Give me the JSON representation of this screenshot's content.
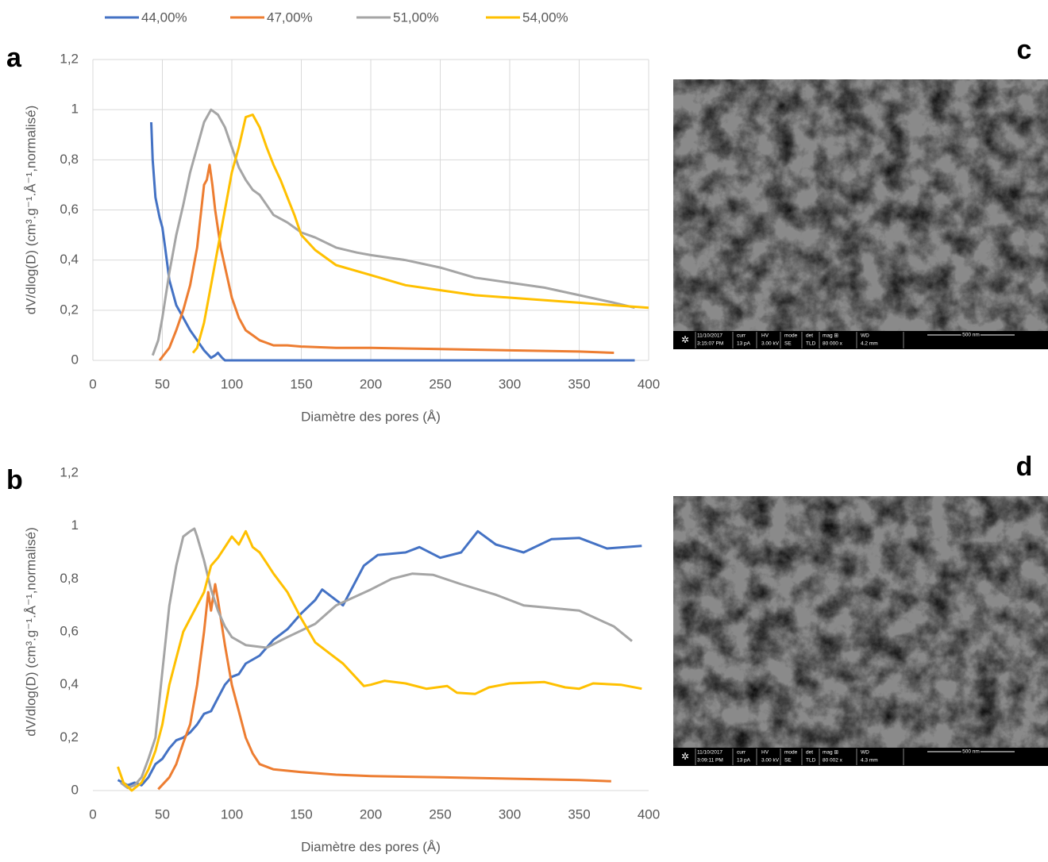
{
  "chart_data": [
    {
      "type": "line",
      "panel_label": "a",
      "x_label": "Diamètre des pores (Å)",
      "y_label": "dV/dlog(D) (cm³.g⁻¹.Å⁻¹,normalisé)",
      "xlim": [
        0,
        400
      ],
      "xticks": [
        0,
        50,
        100,
        150,
        200,
        250,
        300,
        350,
        400
      ],
      "ylim": [
        0,
        1.2
      ],
      "yticks": [
        0,
        {
          "value": 0.2,
          "label": "0,2"
        },
        {
          "value": 0.4,
          "label": "0,4"
        },
        {
          "value": 0.6,
          "label": "0,6"
        },
        {
          "value": 0.8,
          "label": "0,8"
        },
        1,
        {
          "value": 1.2,
          "label": "1,2"
        }
      ],
      "grid": true,
      "series": [
        {
          "name": "44,00%",
          "color": "#4472c4",
          "x": [
            42,
            43,
            45,
            48,
            50,
            52,
            55,
            60,
            65,
            70,
            75,
            80,
            85,
            88,
            90,
            93,
            95,
            150,
            200,
            300,
            390
          ],
          "values": [
            0.95,
            0.8,
            0.65,
            0.57,
            0.53,
            0.45,
            0.32,
            0.22,
            0.17,
            0.12,
            0.08,
            0.04,
            0.01,
            0.02,
            0.03,
            0.01,
            0,
            0,
            0,
            0,
            0
          ]
        },
        {
          "name": "47,00%",
          "color": "#ed7d31",
          "x": [
            48,
            55,
            60,
            65,
            70,
            75,
            78,
            80,
            82,
            84,
            86,
            88,
            92,
            96,
            100,
            105,
            110,
            115,
            120,
            130,
            140,
            150,
            175,
            200,
            250,
            300,
            350,
            375
          ],
          "values": [
            0,
            0.05,
            0.12,
            0.2,
            0.3,
            0.45,
            0.6,
            0.7,
            0.72,
            0.78,
            0.7,
            0.6,
            0.45,
            0.35,
            0.25,
            0.17,
            0.12,
            0.1,
            0.08,
            0.06,
            0.06,
            0.055,
            0.05,
            0.05,
            0.045,
            0.04,
            0.035,
            0.03
          ]
        },
        {
          "name": "51,00%",
          "color": "#a5a5a5",
          "x": [
            43,
            47,
            50,
            55,
            60,
            65,
            70,
            75,
            80,
            85,
            90,
            95,
            100,
            105,
            110,
            115,
            120,
            125,
            130,
            140,
            150,
            160,
            175,
            190,
            200,
            225,
            250,
            275,
            300,
            325,
            350,
            375,
            390
          ],
          "values": [
            0.02,
            0.08,
            0.17,
            0.35,
            0.5,
            0.62,
            0.75,
            0.85,
            0.95,
            1.0,
            0.98,
            0.93,
            0.85,
            0.77,
            0.72,
            0.68,
            0.66,
            0.62,
            0.58,
            0.55,
            0.51,
            0.49,
            0.45,
            0.43,
            0.42,
            0.4,
            0.37,
            0.33,
            0.31,
            0.29,
            0.26,
            0.23,
            0.21
          ]
        },
        {
          "name": "54,00%",
          "color": "#ffc000",
          "x": [
            72,
            75,
            80,
            85,
            90,
            95,
            100,
            105,
            110,
            115,
            120,
            125,
            130,
            135,
            140,
            145,
            150,
            160,
            175,
            200,
            225,
            250,
            275,
            300,
            350,
            400
          ],
          "values": [
            0.03,
            0.05,
            0.15,
            0.3,
            0.45,
            0.6,
            0.75,
            0.85,
            0.97,
            0.98,
            0.93,
            0.85,
            0.78,
            0.72,
            0.65,
            0.58,
            0.5,
            0.44,
            0.38,
            0.34,
            0.3,
            0.28,
            0.26,
            0.25,
            0.23,
            0.21
          ]
        }
      ]
    },
    {
      "type": "line",
      "panel_label": "b",
      "x_label": "Diamètre des pores (Å)",
      "y_label": "dV/dlog(D) (cm³.g⁻¹.Å⁻¹,normalisé)",
      "xlim": [
        0,
        400
      ],
      "xticks": [
        0,
        50,
        100,
        150,
        200,
        250,
        300,
        350,
        400
      ],
      "ylim": [
        0,
        1.2
      ],
      "yticks": [
        0,
        {
          "value": 0.2,
          "label": "0,2"
        },
        {
          "value": 0.4,
          "label": "0,4"
        },
        {
          "value": 0.6,
          "label": "0,6"
        },
        {
          "value": 0.8,
          "label": "0,8"
        },
        1,
        {
          "value": 1.2,
          "label": "1,2"
        }
      ],
      "grid": false,
      "series": [
        {
          "color": "#4472c4",
          "x": [
            18,
            25,
            30,
            35,
            40,
            45,
            50,
            55,
            60,
            65,
            70,
            75,
            80,
            85,
            90,
            95,
            100,
            105,
            110,
            120,
            130,
            140,
            150,
            160,
            165,
            180,
            195,
            205,
            225,
            235,
            250,
            265,
            277,
            290,
            310,
            330,
            350,
            370,
            395
          ],
          "values": [
            0.04,
            0.02,
            0.03,
            0.02,
            0.05,
            0.1,
            0.12,
            0.16,
            0.19,
            0.2,
            0.22,
            0.25,
            0.29,
            0.3,
            0.35,
            0.4,
            0.43,
            0.44,
            0.48,
            0.51,
            0.57,
            0.61,
            0.67,
            0.72,
            0.76,
            0.7,
            0.85,
            0.89,
            0.9,
            0.92,
            0.88,
            0.9,
            0.98,
            0.93,
            0.9,
            0.95,
            0.955,
            0.915,
            0.925
          ]
        },
        {
          "color": "#ed7d31",
          "x": [
            47,
            55,
            60,
            65,
            70,
            75,
            80,
            83,
            85,
            88,
            90,
            95,
            100,
            105,
            110,
            115,
            120,
            130,
            150,
            175,
            200,
            250,
            300,
            350,
            373
          ],
          "values": [
            0.005,
            0.05,
            0.1,
            0.18,
            0.25,
            0.4,
            0.6,
            0.75,
            0.68,
            0.78,
            0.72,
            0.55,
            0.4,
            0.3,
            0.2,
            0.14,
            0.1,
            0.08,
            0.07,
            0.06,
            0.055,
            0.05,
            0.045,
            0.04,
            0.035
          ]
        },
        {
          "color": "#a5a5a5",
          "x": [
            20,
            25,
            30,
            35,
            40,
            45,
            50,
            55,
            60,
            65,
            70,
            73,
            75,
            80,
            85,
            90,
            95,
            100,
            110,
            125,
            140,
            160,
            175,
            200,
            215,
            230,
            245,
            265,
            290,
            310,
            350,
            375,
            388
          ],
          "values": [
            0.03,
            0.01,
            0.02,
            0.05,
            0.12,
            0.2,
            0.45,
            0.7,
            0.85,
            0.96,
            0.98,
            0.99,
            0.96,
            0.87,
            0.76,
            0.68,
            0.62,
            0.58,
            0.55,
            0.54,
            0.58,
            0.63,
            0.7,
            0.76,
            0.8,
            0.82,
            0.815,
            0.78,
            0.74,
            0.7,
            0.68,
            0.62,
            0.565
          ]
        },
        {
          "color": "#ffc000",
          "x": [
            18,
            22,
            28,
            35,
            40,
            45,
            50,
            55,
            60,
            65,
            70,
            75,
            80,
            85,
            90,
            95,
            100,
            105,
            110,
            115,
            120,
            125,
            130,
            140,
            150,
            160,
            170,
            180,
            195,
            200,
            210,
            225,
            240,
            255,
            262,
            275,
            285,
            300,
            325,
            340,
            350,
            360,
            380,
            395
          ],
          "values": [
            0.09,
            0.03,
            0.0,
            0.03,
            0.08,
            0.15,
            0.25,
            0.4,
            0.5,
            0.6,
            0.65,
            0.7,
            0.75,
            0.85,
            0.88,
            0.92,
            0.96,
            0.93,
            0.98,
            0.92,
            0.9,
            0.86,
            0.82,
            0.75,
            0.65,
            0.56,
            0.52,
            0.48,
            0.395,
            0.4,
            0.415,
            0.405,
            0.385,
            0.395,
            0.37,
            0.365,
            0.39,
            0.405,
            0.41,
            0.39,
            0.385,
            0.405,
            0.4,
            0.385
          ]
        }
      ]
    }
  ],
  "images": [
    {
      "panel_label": "c",
      "info": [
        [
          "11/10/2017",
          "3:15:07 PM"
        ],
        [
          "curr",
          "13 pA"
        ],
        [
          "HV",
          "3.00 kV"
        ],
        [
          "mode",
          "SE"
        ],
        [
          "det",
          "TLD"
        ],
        [
          "mag ⊞",
          "80 000 x"
        ],
        [
          "WD",
          "4.2 mm"
        ]
      ],
      "scale": "500 nm"
    },
    {
      "panel_label": "d",
      "info": [
        [
          "11/10/2017",
          "3:09:11 PM"
        ],
        [
          "curr",
          "13 pA"
        ],
        [
          "HV",
          "3.00 kV"
        ],
        [
          "mode",
          "SE"
        ],
        [
          "det",
          "TLD"
        ],
        [
          "mag ⊞",
          "80 002 x"
        ],
        [
          "WD",
          "4.3 mm"
        ]
      ],
      "scale": "500 nm"
    }
  ]
}
